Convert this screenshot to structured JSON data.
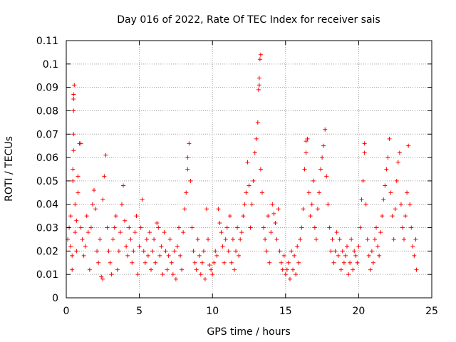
{
  "chart_data": {
    "type": "scatter",
    "title": "Day 016 of 2022, Rate Of TEC Index for receiver sais",
    "xlabel": "GPS time / hours",
    "ylabel": "ROTI / TECUs",
    "xlim": [
      0,
      25
    ],
    "ylim": [
      0,
      0.11
    ],
    "xticks": [
      0,
      5,
      10,
      15,
      20,
      25
    ],
    "yticks": [
      0,
      0.01,
      0.02,
      0.03,
      0.04,
      0.05,
      0.06,
      0.07,
      0.08,
      0.09,
      0.1,
      0.11
    ],
    "xtick_labels": [
      "0",
      "5",
      "10",
      "15",
      "20",
      "25"
    ],
    "ytick_labels": [
      "0",
      "0.01",
      "0.02",
      "0.03",
      "0.04",
      "0.05",
      "0.06",
      "0.07",
      "0.08",
      "0.09",
      "0.1",
      "0.11"
    ],
    "grid": true,
    "marker": "plus",
    "series": [
      {
        "color": "#ff0000",
        "points": [
          [
            0.1,
            0.025
          ],
          [
            0.2,
            0.03
          ],
          [
            0.3,
            0.022
          ],
          [
            0.3,
            0.035
          ],
          [
            0.4,
            0.018
          ],
          [
            0.4,
            0.012
          ],
          [
            0.45,
            0.05
          ],
          [
            0.45,
            0.055
          ],
          [
            0.5,
            0.063
          ],
          [
            0.5,
            0.07
          ],
          [
            0.5,
            0.08
          ],
          [
            0.5,
            0.085
          ],
          [
            0.5,
            0.087
          ],
          [
            0.55,
            0.091
          ],
          [
            0.6,
            0.04
          ],
          [
            0.6,
            0.028
          ],
          [
            0.7,
            0.033
          ],
          [
            0.7,
            0.02
          ],
          [
            0.8,
            0.052
          ],
          [
            0.8,
            0.045
          ],
          [
            0.9,
            0.066
          ],
          [
            1.0,
            0.066
          ],
          [
            1.0,
            0.03
          ],
          [
            1.1,
            0.025
          ],
          [
            1.2,
            0.018
          ],
          [
            1.3,
            0.022
          ],
          [
            1.4,
            0.035
          ],
          [
            1.5,
            0.028
          ],
          [
            1.6,
            0.012
          ],
          [
            1.7,
            0.03
          ],
          [
            1.8,
            0.04
          ],
          [
            1.9,
            0.046
          ],
          [
            2.0,
            0.038
          ],
          [
            2.1,
            0.02
          ],
          [
            2.2,
            0.015
          ],
          [
            2.3,
            0.025
          ],
          [
            2.4,
            0.009
          ],
          [
            2.5,
            0.008
          ],
          [
            2.5,
            0.042
          ],
          [
            2.6,
            0.052
          ],
          [
            2.7,
            0.061
          ],
          [
            2.8,
            0.03
          ],
          [
            2.9,
            0.02
          ],
          [
            3.0,
            0.015
          ],
          [
            3.1,
            0.01
          ],
          [
            3.2,
            0.025
          ],
          [
            3.3,
            0.03
          ],
          [
            3.4,
            0.035
          ],
          [
            3.5,
            0.012
          ],
          [
            3.6,
            0.02
          ],
          [
            3.7,
            0.028
          ],
          [
            3.8,
            0.04
          ],
          [
            3.9,
            0.048
          ],
          [
            4.0,
            0.033
          ],
          [
            4.1,
            0.022
          ],
          [
            4.2,
            0.018
          ],
          [
            4.3,
            0.03
          ],
          [
            4.4,
            0.025
          ],
          [
            4.5,
            0.015
          ],
          [
            4.6,
            0.02
          ],
          [
            4.7,
            0.028
          ],
          [
            4.8,
            0.035
          ],
          [
            4.9,
            0.01
          ],
          [
            5.0,
            0.022
          ],
          [
            5.1,
            0.03
          ],
          [
            5.2,
            0.042
          ],
          [
            5.3,
            0.02
          ],
          [
            5.4,
            0.015
          ],
          [
            5.5,
            0.025
          ],
          [
            5.6,
            0.018
          ],
          [
            5.7,
            0.028
          ],
          [
            5.8,
            0.012
          ],
          [
            5.9,
            0.02
          ],
          [
            6.0,
            0.025
          ],
          [
            6.1,
            0.015
          ],
          [
            6.2,
            0.032
          ],
          [
            6.3,
            0.03
          ],
          [
            6.4,
            0.018
          ],
          [
            6.5,
            0.022
          ],
          [
            6.6,
            0.01
          ],
          [
            6.7,
            0.028
          ],
          [
            6.8,
            0.02
          ],
          [
            6.9,
            0.012
          ],
          [
            7.0,
            0.018
          ],
          [
            7.1,
            0.025
          ],
          [
            7.2,
            0.015
          ],
          [
            7.3,
            0.01
          ],
          [
            7.4,
            0.02
          ],
          [
            7.5,
            0.008
          ],
          [
            7.6,
            0.022
          ],
          [
            7.7,
            0.03
          ],
          [
            7.8,
            0.018
          ],
          [
            7.9,
            0.012
          ],
          [
            8.0,
            0.028
          ],
          [
            8.1,
            0.038
          ],
          [
            8.2,
            0.045
          ],
          [
            8.3,
            0.055
          ],
          [
            8.3,
            0.06
          ],
          [
            8.4,
            0.066
          ],
          [
            8.5,
            0.05
          ],
          [
            8.6,
            0.03
          ],
          [
            8.7,
            0.02
          ],
          [
            8.8,
            0.015
          ],
          [
            8.9,
            0.012
          ],
          [
            9.0,
            0.025
          ],
          [
            9.1,
            0.018
          ],
          [
            9.2,
            0.01
          ],
          [
            9.3,
            0.015
          ],
          [
            9.4,
            0.02
          ],
          [
            9.5,
            0.008
          ],
          [
            9.6,
            0.038
          ],
          [
            9.7,
            0.025
          ],
          [
            9.8,
            0.014
          ],
          [
            9.9,
            0.012
          ],
          [
            10.0,
            0.01
          ],
          [
            10.1,
            0.015
          ],
          [
            10.2,
            0.02
          ],
          [
            10.3,
            0.018
          ],
          [
            10.4,
            0.038
          ],
          [
            10.5,
            0.032
          ],
          [
            10.6,
            0.028
          ],
          [
            10.7,
            0.022
          ],
          [
            10.8,
            0.015
          ],
          [
            10.9,
            0.025
          ],
          [
            11.0,
            0.03
          ],
          [
            11.1,
            0.02
          ],
          [
            11.2,
            0.035
          ],
          [
            11.3,
            0.015
          ],
          [
            11.4,
            0.025
          ],
          [
            11.5,
            0.012
          ],
          [
            11.6,
            0.02
          ],
          [
            11.7,
            0.03
          ],
          [
            11.8,
            0.018
          ],
          [
            11.9,
            0.025
          ],
          [
            12.0,
            0.028
          ],
          [
            12.1,
            0.035
          ],
          [
            12.2,
            0.04
          ],
          [
            12.3,
            0.045
          ],
          [
            12.4,
            0.058
          ],
          [
            12.5,
            0.048
          ],
          [
            12.6,
            0.03
          ],
          [
            12.7,
            0.04
          ],
          [
            12.8,
            0.05
          ],
          [
            12.9,
            0.062
          ],
          [
            13.0,
            0.068
          ],
          [
            13.1,
            0.075
          ],
          [
            13.15,
            0.089
          ],
          [
            13.2,
            0.091
          ],
          [
            13.2,
            0.094
          ],
          [
            13.25,
            0.102
          ],
          [
            13.3,
            0.104
          ],
          [
            13.3,
            0.055
          ],
          [
            13.4,
            0.045
          ],
          [
            13.5,
            0.03
          ],
          [
            13.6,
            0.025
          ],
          [
            13.7,
            0.02
          ],
          [
            13.8,
            0.035
          ],
          [
            13.9,
            0.015
          ],
          [
            14.0,
            0.028
          ],
          [
            14.1,
            0.04
          ],
          [
            14.2,
            0.036
          ],
          [
            14.3,
            0.032
          ],
          [
            14.4,
            0.025
          ],
          [
            14.5,
            0.038
          ],
          [
            14.6,
            0.02
          ],
          [
            14.7,
            0.015
          ],
          [
            14.8,
            0.012
          ],
          [
            14.9,
            0.018
          ],
          [
            15.0,
            0.01
          ],
          [
            15.1,
            0.012
          ],
          [
            15.2,
            0.015
          ],
          [
            15.3,
            0.008
          ],
          [
            15.4,
            0.02
          ],
          [
            15.5,
            0.012
          ],
          [
            15.6,
            0.018
          ],
          [
            15.7,
            0.01
          ],
          [
            15.8,
            0.022
          ],
          [
            15.9,
            0.015
          ],
          [
            16.0,
            0.025
          ],
          [
            16.1,
            0.03
          ],
          [
            16.2,
            0.038
          ],
          [
            16.3,
            0.055
          ],
          [
            16.4,
            0.062
          ],
          [
            16.4,
            0.067
          ],
          [
            16.5,
            0.068
          ],
          [
            16.6,
            0.045
          ],
          [
            16.7,
            0.035
          ],
          [
            16.8,
            0.04
          ],
          [
            16.9,
            0.05
          ],
          [
            17.0,
            0.03
          ],
          [
            17.1,
            0.025
          ],
          [
            17.2,
            0.038
          ],
          [
            17.3,
            0.045
          ],
          [
            17.4,
            0.055
          ],
          [
            17.5,
            0.06
          ],
          [
            17.6,
            0.065
          ],
          [
            17.7,
            0.072
          ],
          [
            17.8,
            0.052
          ],
          [
            17.9,
            0.04
          ],
          [
            18.0,
            0.03
          ],
          [
            18.1,
            0.02
          ],
          [
            18.2,
            0.025
          ],
          [
            18.3,
            0.015
          ],
          [
            18.4,
            0.02
          ],
          [
            18.5,
            0.028
          ],
          [
            18.6,
            0.018
          ],
          [
            18.7,
            0.025
          ],
          [
            18.8,
            0.012
          ],
          [
            18.9,
            0.02
          ],
          [
            19.0,
            0.015
          ],
          [
            19.1,
            0.018
          ],
          [
            19.2,
            0.022
          ],
          [
            19.3,
            0.01
          ],
          [
            19.4,
            0.015
          ],
          [
            19.5,
            0.025
          ],
          [
            19.6,
            0.012
          ],
          [
            19.7,
            0.02
          ],
          [
            19.8,
            0.018
          ],
          [
            19.9,
            0.015
          ],
          [
            20.0,
            0.022
          ],
          [
            20.1,
            0.03
          ],
          [
            20.2,
            0.042
          ],
          [
            20.3,
            0.05
          ],
          [
            20.4,
            0.062
          ],
          [
            20.4,
            0.066
          ],
          [
            20.5,
            0.04
          ],
          [
            20.6,
            0.025
          ],
          [
            20.7,
            0.018
          ],
          [
            20.8,
            0.012
          ],
          [
            20.9,
            0.02
          ],
          [
            21.0,
            0.015
          ],
          [
            21.1,
            0.025
          ],
          [
            21.2,
            0.03
          ],
          [
            21.3,
            0.022
          ],
          [
            21.4,
            0.018
          ],
          [
            21.5,
            0.028
          ],
          [
            21.6,
            0.035
          ],
          [
            21.7,
            0.042
          ],
          [
            21.8,
            0.048
          ],
          [
            21.9,
            0.055
          ],
          [
            22.0,
            0.06
          ],
          [
            22.1,
            0.068
          ],
          [
            22.2,
            0.045
          ],
          [
            22.3,
            0.035
          ],
          [
            22.4,
            0.025
          ],
          [
            22.5,
            0.038
          ],
          [
            22.6,
            0.05
          ],
          [
            22.7,
            0.058
          ],
          [
            22.8,
            0.062
          ],
          [
            22.9,
            0.04
          ],
          [
            23.0,
            0.03
          ],
          [
            23.1,
            0.025
          ],
          [
            23.2,
            0.035
          ],
          [
            23.3,
            0.045
          ],
          [
            23.4,
            0.065
          ],
          [
            23.5,
            0.04
          ],
          [
            23.6,
            0.03
          ],
          [
            23.7,
            0.022
          ],
          [
            23.8,
            0.018
          ],
          [
            23.9,
            0.025
          ],
          [
            23.95,
            0.012
          ]
        ]
      }
    ]
  }
}
